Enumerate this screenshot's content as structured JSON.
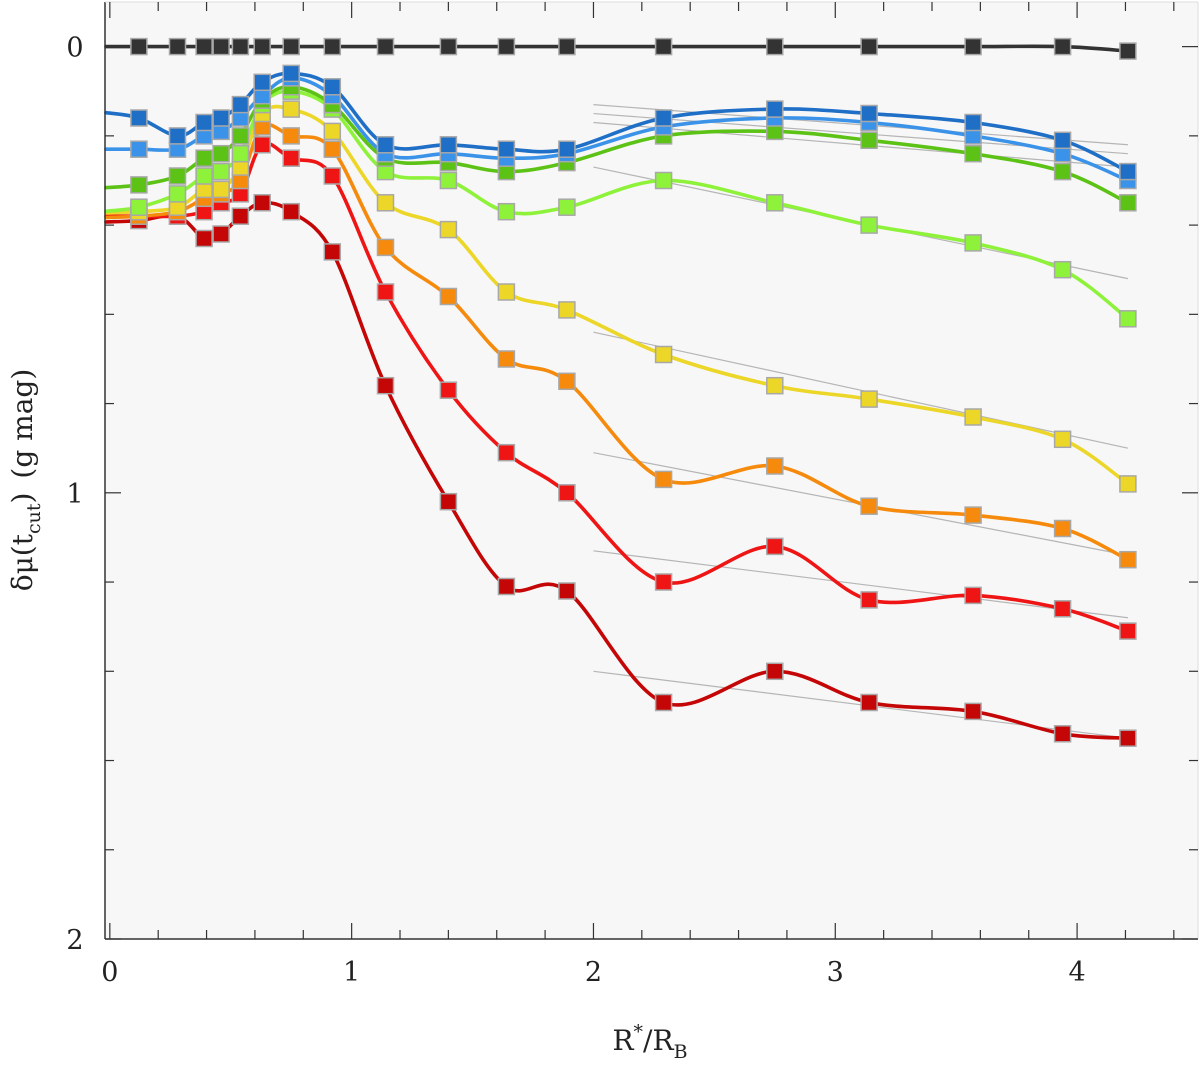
{
  "chart_data": {
    "type": "line",
    "title": "",
    "xlabel_parts": {
      "base": "R",
      "sup": "*",
      "slash": "/",
      "base2": "R",
      "sub": "B"
    },
    "ylabel_parts": {
      "prefix": "δμ(t",
      "sub": "cut",
      "suffix": ")",
      "unit": "(g mag)"
    },
    "xlim": [
      -0.02,
      4.5
    ],
    "ylim": [
      2.0,
      -0.1
    ],
    "y_inverted": true,
    "x_ticks": [
      "0",
      "1",
      "2",
      "3",
      "4"
    ],
    "y_ticks": [
      "0",
      "1",
      "2"
    ],
    "x": [
      0.12,
      0.28,
      0.39,
      0.46,
      0.54,
      0.63,
      0.75,
      0.92,
      1.14,
      1.4,
      1.64,
      1.89,
      2.29,
      2.75,
      3.14,
      3.57,
      3.94,
      4.21
    ],
    "series": [
      {
        "name": "black",
        "color": "#333333",
        "values": [
          0.0,
          0.0,
          0.0,
          0.0,
          0.0,
          0.0,
          0.0,
          0.0,
          0.0,
          0.0,
          0.0,
          0.0,
          0.0,
          0.0,
          0.0,
          0.0,
          0.0,
          0.01
        ]
      },
      {
        "name": "dark-blue",
        "color": "#1f6fc7",
        "values": [
          0.16,
          0.2,
          0.17,
          0.16,
          0.13,
          0.08,
          0.06,
          0.09,
          0.22,
          0.22,
          0.23,
          0.23,
          0.16,
          0.14,
          0.15,
          0.17,
          0.21,
          0.28
        ]
      },
      {
        "name": "light-blue",
        "color": "#3a93e8",
        "values": [
          0.23,
          0.23,
          0.2,
          0.19,
          0.16,
          0.11,
          0.07,
          0.11,
          0.24,
          0.24,
          0.25,
          0.24,
          0.18,
          0.16,
          0.17,
          0.2,
          0.24,
          0.3
        ]
      },
      {
        "name": "green",
        "color": "#5cc215",
        "values": [
          0.31,
          0.29,
          0.25,
          0.24,
          0.2,
          0.12,
          0.09,
          0.13,
          0.25,
          0.26,
          0.28,
          0.26,
          0.2,
          0.19,
          0.21,
          0.24,
          0.28,
          0.35
        ]
      },
      {
        "name": "lime",
        "color": "#8ef23a",
        "values": [
          0.36,
          0.33,
          0.29,
          0.28,
          0.24,
          0.13,
          0.1,
          0.14,
          0.28,
          0.3,
          0.37,
          0.36,
          0.3,
          0.35,
          0.4,
          0.44,
          0.5,
          0.61
        ]
      },
      {
        "name": "yellow",
        "color": "#ecd627",
        "values": [
          0.37,
          0.36,
          0.32,
          0.32,
          0.27,
          0.15,
          0.14,
          0.19,
          0.35,
          0.41,
          0.55,
          0.59,
          0.69,
          0.76,
          0.79,
          0.83,
          0.88,
          0.98
        ]
      },
      {
        "name": "orange",
        "color": "#f58a0d",
        "values": [
          0.38,
          0.37,
          0.34,
          0.33,
          0.3,
          0.18,
          0.2,
          0.23,
          0.45,
          0.56,
          0.7,
          0.75,
          0.97,
          0.94,
          1.03,
          1.05,
          1.08,
          1.15
        ]
      },
      {
        "name": "red",
        "color": "#ef1515",
        "values": [
          0.38,
          0.38,
          0.37,
          0.35,
          0.33,
          0.22,
          0.25,
          0.29,
          0.55,
          0.77,
          0.91,
          1.0,
          1.2,
          1.12,
          1.24,
          1.23,
          1.26,
          1.31
        ]
      },
      {
        "name": "dark-red",
        "color": "#c40606",
        "values": [
          0.39,
          0.38,
          0.43,
          0.42,
          0.38,
          0.35,
          0.37,
          0.46,
          0.76,
          1.02,
          1.21,
          1.22,
          1.47,
          1.4,
          1.47,
          1.49,
          1.54,
          1.55
        ]
      }
    ],
    "fit_lines": [
      {
        "name": "fit-dark-blue",
        "x": [
          2.0,
          4.21
        ],
        "values": [
          0.13,
          0.22
        ]
      },
      {
        "name": "fit-light-blue",
        "x": [
          2.0,
          4.21
        ],
        "values": [
          0.15,
          0.24
        ]
      },
      {
        "name": "fit-green",
        "x": [
          2.0,
          4.21
        ],
        "values": [
          0.17,
          0.27
        ]
      },
      {
        "name": "fit-lime",
        "x": [
          2.0,
          4.21
        ],
        "values": [
          0.27,
          0.52
        ]
      },
      {
        "name": "fit-yellow",
        "x": [
          2.0,
          4.21
        ],
        "values": [
          0.64,
          0.9
        ]
      },
      {
        "name": "fit-orange",
        "x": [
          2.0,
          4.21
        ],
        "values": [
          0.91,
          1.14
        ]
      },
      {
        "name": "fit-red",
        "x": [
          2.0,
          4.21
        ],
        "values": [
          1.13,
          1.28
        ]
      },
      {
        "name": "fit-dark-red",
        "x": [
          2.0,
          4.21
        ],
        "values": [
          1.4,
          1.55
        ]
      }
    ],
    "colors": {
      "plot_bg": "#f7f7f7",
      "fit_line": "#b5b5b5",
      "marker_edge": "#a8a8a8",
      "axis": "#333333"
    }
  }
}
